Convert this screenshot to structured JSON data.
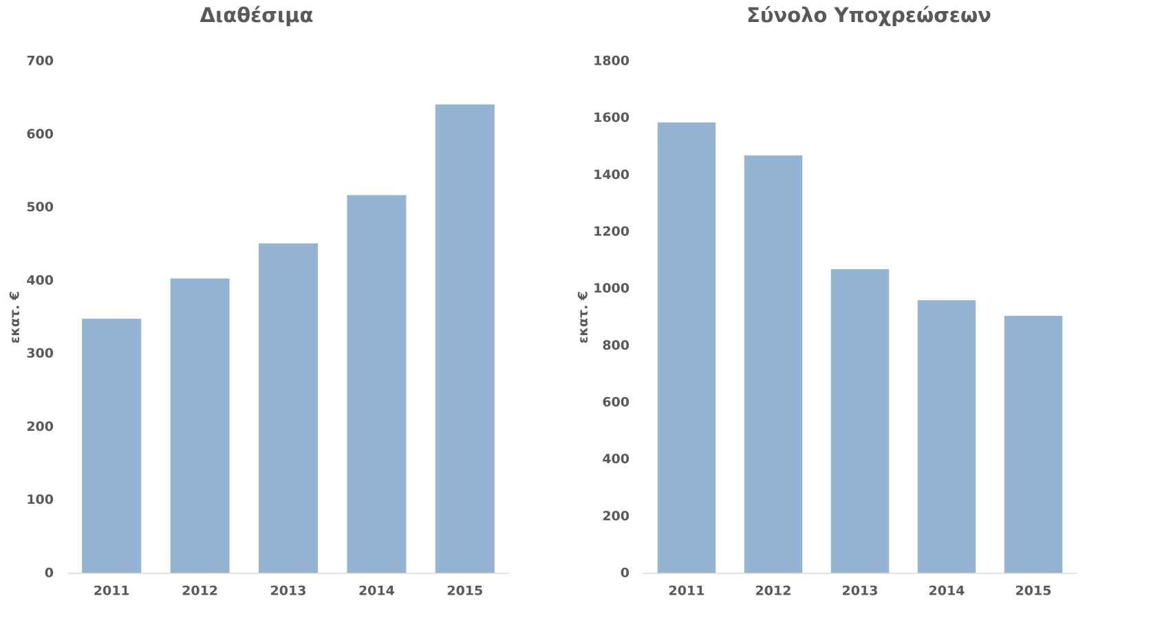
{
  "chart_data": [
    {
      "type": "bar",
      "title": "Διαθέσιμα",
      "y_label": "εκατ. €",
      "categories": [
        "2011",
        "2012",
        "2013",
        "2014",
        "2015"
      ],
      "values": [
        348,
        403,
        451,
        517,
        641
      ],
      "color": "#95b3d3",
      "ylim": [
        0,
        700
      ],
      "yticks": [
        0,
        100,
        200,
        300,
        400,
        500,
        600,
        700
      ],
      "grid": false
    },
    {
      "type": "bar",
      "title": "Σύνολο Υποχρεώσεων",
      "y_label": "εκατ. €",
      "categories": [
        "2011",
        "2012",
        "2013",
        "2014",
        "2015"
      ],
      "values": [
        1585,
        1469,
        1069,
        960,
        905
      ],
      "color": "#95b3d3",
      "ylim": [
        0,
        1800
      ],
      "yticks": [
        0,
        200,
        400,
        600,
        800,
        1000,
        1200,
        1400,
        1600,
        1800
      ],
      "grid": false
    }
  ]
}
